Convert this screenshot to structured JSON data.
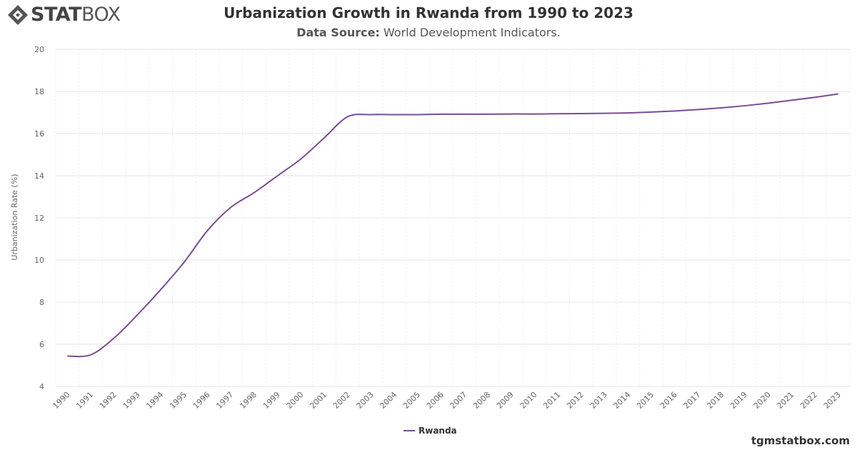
{
  "brand": {
    "logo_bold": "STAT",
    "logo_light": "BOX"
  },
  "header": {
    "title": "Urbanization Growth in Rwanda from 1990 to 2023",
    "source_label": "Data Source:",
    "source_value": "World Development Indicators."
  },
  "footer": {
    "site": "tgmstatbox.com"
  },
  "colors": {
    "series": "#7b4b94",
    "grid": "#e6e6e6",
    "axis_text": "#666666"
  },
  "chart_data": {
    "type": "line",
    "title": "Urbanization Growth in Rwanda from 1990 to 2023",
    "xlabel": "",
    "ylabel": "Urbanization Rate (%)",
    "ylim": [
      4,
      20
    ],
    "yticks": [
      4,
      6,
      8,
      10,
      12,
      14,
      16,
      18,
      20
    ],
    "grid": true,
    "legend_position": "bottom-center",
    "x": [
      "1990",
      "1991",
      "1992",
      "1993",
      "1994",
      "1995",
      "1996",
      "1997",
      "1998",
      "1999",
      "2000",
      "2001",
      "2002",
      "2003",
      "2004",
      "2005",
      "2006",
      "2007",
      "2008",
      "2009",
      "2010",
      "2011",
      "2012",
      "2013",
      "2014",
      "2015",
      "2016",
      "2017",
      "2018",
      "2019",
      "2020",
      "2021",
      "2022",
      "2023"
    ],
    "series": [
      {
        "name": "Rwanda",
        "values": [
          5.44,
          5.5,
          6.3,
          7.4,
          8.6,
          9.9,
          11.4,
          12.5,
          13.2,
          14.0,
          14.8,
          15.8,
          16.8,
          16.9,
          16.9,
          16.9,
          16.92,
          16.92,
          16.92,
          16.93,
          16.93,
          16.94,
          16.95,
          16.96,
          16.98,
          17.02,
          17.07,
          17.14,
          17.22,
          17.32,
          17.44,
          17.58,
          17.72,
          17.88
        ]
      }
    ]
  }
}
